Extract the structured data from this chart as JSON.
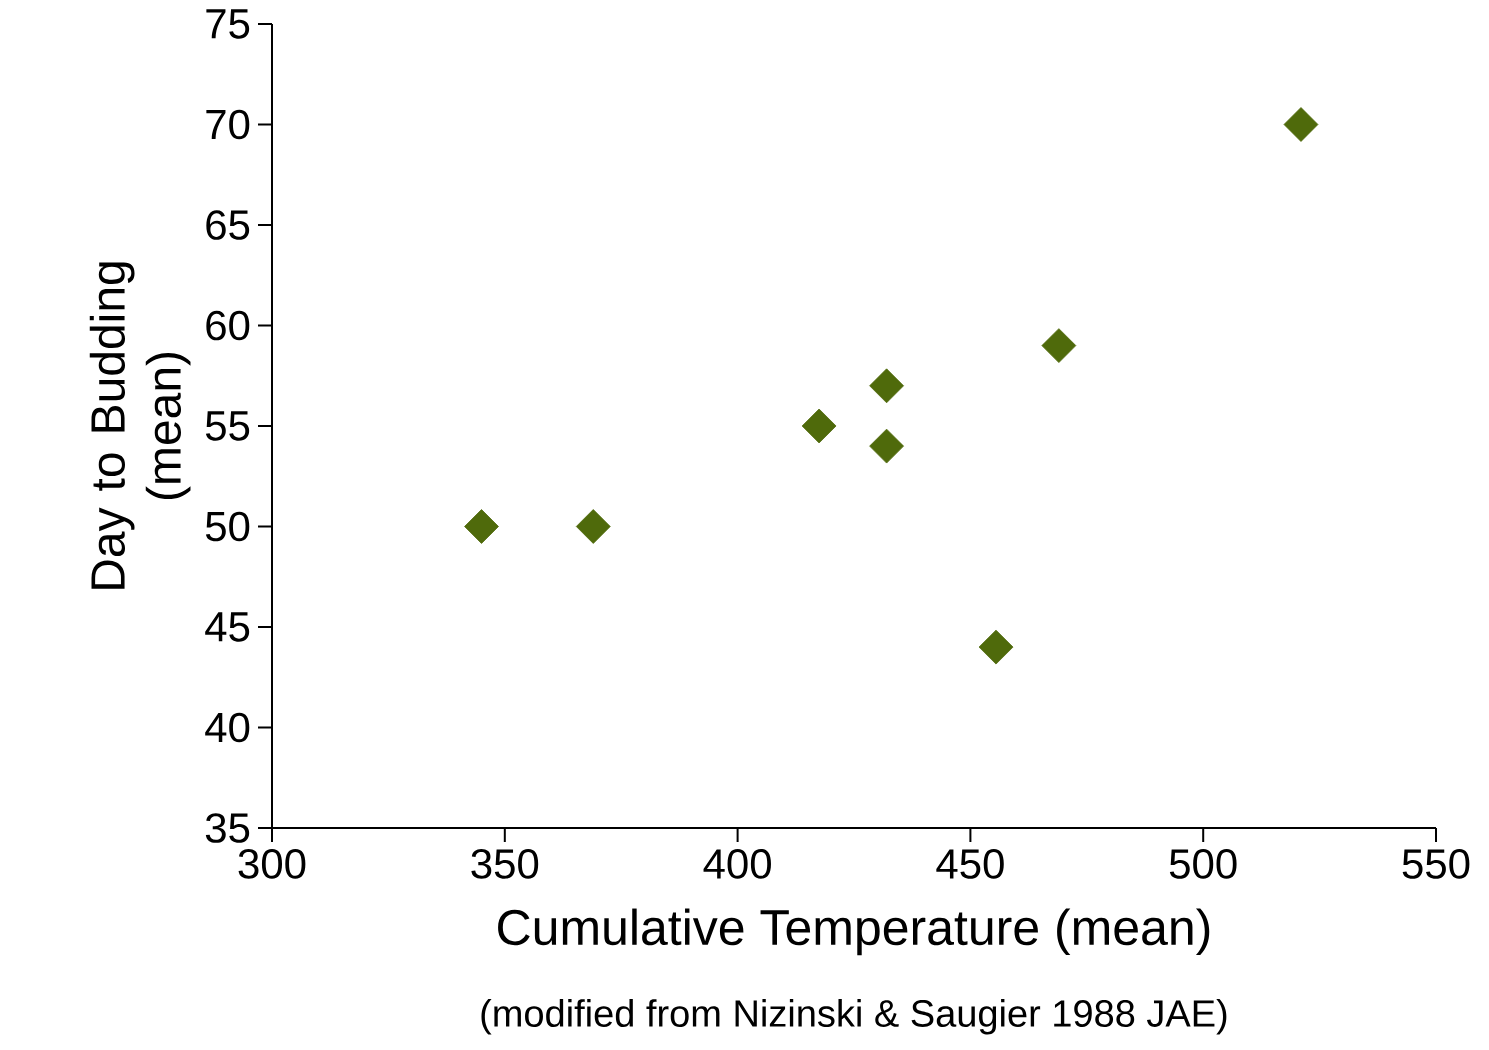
{
  "chart_data": {
    "type": "scatter",
    "xlabel": "Cumulative Temperature (mean)",
    "ylabel": "Day to Budding (mean)",
    "annotations": [
      "(modified from Nizinski & Saugier 1988 JAE)"
    ],
    "x": [
      345,
      369,
      417.5,
      432,
      432,
      455.5,
      469,
      521
    ],
    "values": [
      50,
      50,
      55,
      57,
      54,
      44,
      59,
      70
    ],
    "color": "#4f6a0b",
    "marker": "diamond",
    "xlim": [
      300,
      550
    ],
    "xticks": [
      300,
      350,
      400,
      450,
      500,
      550
    ],
    "ylim": [
      35,
      75
    ],
    "yticks": [
      35,
      40,
      45,
      50,
      55,
      60,
      65,
      70,
      75
    ],
    "grid": false
  }
}
